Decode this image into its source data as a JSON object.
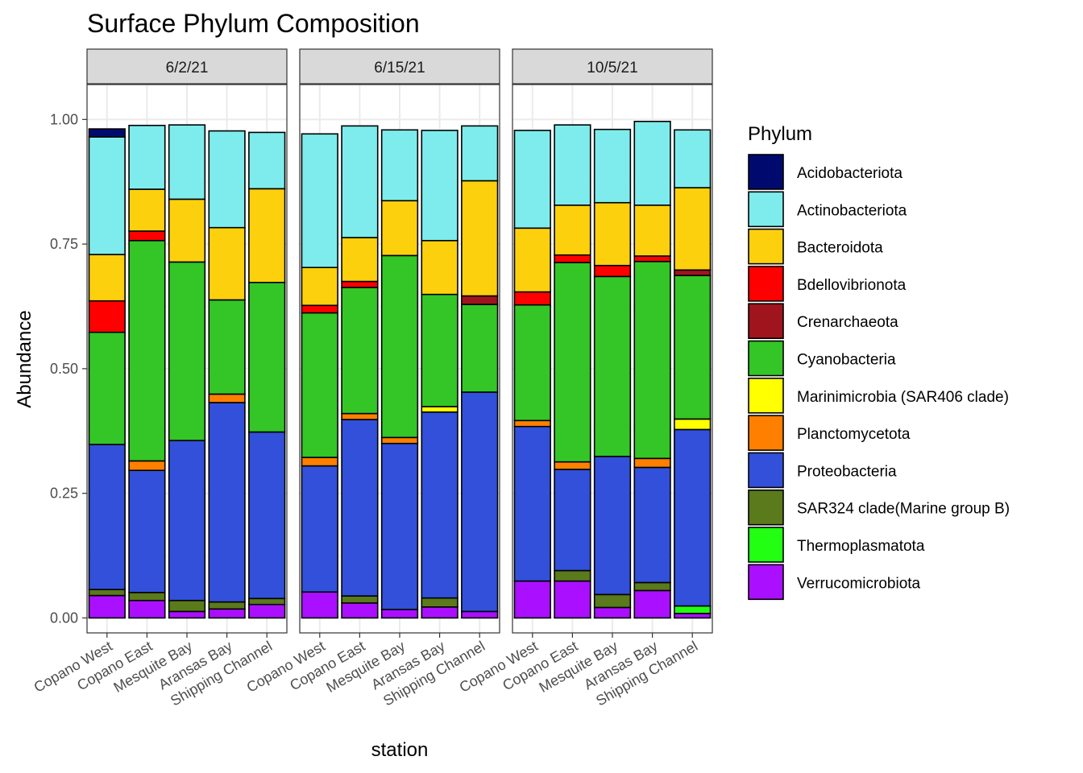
{
  "chart_data": {
    "type": "bar",
    "stacked": true,
    "title": "Surface Phylum Composition",
    "xlabel": "station",
    "ylabel": "Abundance",
    "ylim": [
      -0.03,
      1.07
    ],
    "yticks": [
      0,
      0.25,
      0.5,
      0.75,
      1
    ],
    "ytick_labels": [
      "0.00",
      "0.25",
      "0.50",
      "0.75",
      "1.00"
    ],
    "grid": true,
    "legend_title": "Phylum",
    "legend_position": "right",
    "categories": [
      "Copano West",
      "Copano East",
      "Mesquite Bay",
      "Aransas Bay",
      "Shipping Channel"
    ],
    "phyla": [
      {
        "name": "Acidobacteriota",
        "color": "#000a6e"
      },
      {
        "name": "Actinobacteriota",
        "color": "#7eecec"
      },
      {
        "name": "Bacteroidota",
        "color": "#fdd00d"
      },
      {
        "name": "Bdellovibrionota",
        "color": "#ff0000"
      },
      {
        "name": "Crenarchaeota",
        "color": "#a0141e"
      },
      {
        "name": "Cyanobacteria",
        "color": "#33c626"
      },
      {
        "name": "Marinimicrobia (SAR406 clade)",
        "color": "#ffff00"
      },
      {
        "name": "Planctomycetota",
        "color": "#ff7f00"
      },
      {
        "name": "Proteobacteria",
        "color": "#3250d9"
      },
      {
        "name": "SAR324 clade(Marine group B)",
        "color": "#5a7a1c"
      },
      {
        "name": "Thermoplasmatota",
        "color": "#22ff13"
      },
      {
        "name": "Verrucomicrobiota",
        "color": "#aa10ff"
      }
    ],
    "panels": [
      {
        "label": "6/2/21",
        "values": {
          "Verrucomicrobiota": [
            0.045,
            0.035,
            0.013,
            0.018,
            0.027
          ],
          "Thermoplasmatota": [
            0,
            0,
            0,
            0,
            0
          ],
          "SAR324 clade(Marine group B)": [
            0.012,
            0.016,
            0.022,
            0.014,
            0.012
          ],
          "Proteobacteria": [
            0.291,
            0.245,
            0.321,
            0.4,
            0.334
          ],
          "Planctomycetota": [
            0,
            0.019,
            0,
            0.017,
            0
          ],
          "Marinimicrobia (SAR406 clade)": [
            0,
            0,
            0,
            0,
            0
          ],
          "Cyanobacteria": [
            0.225,
            0.442,
            0.358,
            0.189,
            0.3
          ],
          "Crenarchaeota": [
            0,
            0,
            0,
            0,
            0
          ],
          "Bdellovibrionota": [
            0.063,
            0.019,
            0,
            0,
            0
          ],
          "Bacteroidota": [
            0.093,
            0.084,
            0.126,
            0.145,
            0.188
          ],
          "Actinobacteriota": [
            0.236,
            0.128,
            0.149,
            0.194,
            0.113
          ],
          "Acidobacteriota": [
            0.016,
            0,
            0,
            0,
            0
          ]
        }
      },
      {
        "label": "6/15/21",
        "values": {
          "Verrucomicrobiota": [
            0.052,
            0.03,
            0.017,
            0.022,
            0.013
          ],
          "Thermoplasmatota": [
            0,
            0,
            0,
            0,
            0
          ],
          "SAR324 clade(Marine group B)": [
            0,
            0.014,
            0,
            0.018,
            0
          ],
          "Proteobacteria": [
            0.253,
            0.354,
            0.333,
            0.373,
            0.44
          ],
          "Planctomycetota": [
            0.017,
            0.012,
            0.012,
            0,
            0
          ],
          "Marinimicrobia (SAR406 clade)": [
            0,
            0,
            0,
            0.011,
            0
          ],
          "Cyanobacteria": [
            0.29,
            0.253,
            0.365,
            0.225,
            0.176
          ],
          "Crenarchaeota": [
            0,
            0,
            0,
            0,
            0.017
          ],
          "Bdellovibrionota": [
            0.015,
            0.012,
            0,
            0,
            0
          ],
          "Bacteroidota": [
            0.076,
            0.088,
            0.11,
            0.108,
            0.231
          ],
          "Actinobacteriota": [
            0.268,
            0.224,
            0.142,
            0.221,
            0.11
          ],
          "Acidobacteriota": [
            0,
            0,
            0,
            0,
            0
          ]
        }
      },
      {
        "label": "10/5/21",
        "values": {
          "Verrucomicrobiota": [
            0.074,
            0.074,
            0.021,
            0.055,
            0.009
          ],
          "Thermoplasmatota": [
            0,
            0,
            0,
            0,
            0.015
          ],
          "SAR324 clade(Marine group B)": [
            0,
            0.021,
            0.026,
            0.016,
            0
          ],
          "Proteobacteria": [
            0.31,
            0.203,
            0.277,
            0.231,
            0.354
          ],
          "Planctomycetota": [
            0.012,
            0.015,
            0,
            0.018,
            0
          ],
          "Marinimicrobia (SAR406 clade)": [
            0,
            0,
            0,
            0,
            0.021
          ],
          "Cyanobacteria": [
            0.232,
            0.4,
            0.361,
            0.395,
            0.288
          ],
          "Crenarchaeota": [
            0,
            0,
            0,
            0,
            0.011
          ],
          "Bdellovibrionota": [
            0.026,
            0.015,
            0.022,
            0.011,
            0
          ],
          "Bacteroidota": [
            0.128,
            0.1,
            0.126,
            0.102,
            0.165
          ],
          "Actinobacteriota": [
            0.196,
            0.161,
            0.147,
            0.168,
            0.116
          ],
          "Acidobacteriota": [
            0,
            0,
            0,
            0,
            0
          ]
        }
      }
    ]
  }
}
